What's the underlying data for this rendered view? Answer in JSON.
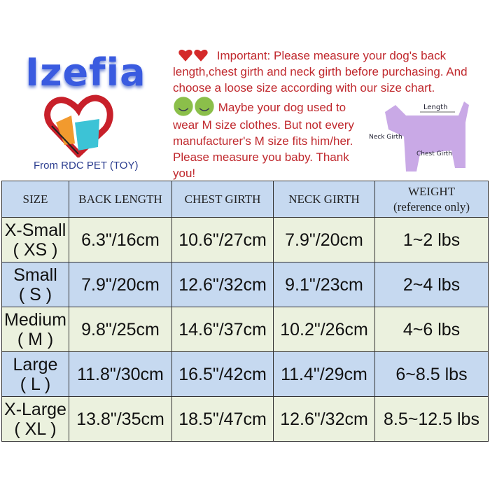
{
  "brand": {
    "name": "Izefia",
    "from": "From RDC PET (TOY)"
  },
  "notice": {
    "important": "Important: Please measure your dog's back length,chest girth and neck girth before purchasing. And choose a loose size according with our size chart.",
    "maybe": "Maybe your dog used to wear M size clothes. But not every manufacturer's M size fits him/her. Please measure you baby. Thank you!"
  },
  "diagram": {
    "length": "Length",
    "neck": "Neck Girth",
    "chest": "Chest Girth"
  },
  "colors": {
    "header": "#c6d9f0",
    "row_green": "#ebf1de",
    "row_blue": "#c6d9f0",
    "notice_text": "#c0282d",
    "brand": "#3a5be0"
  },
  "table": {
    "headers": [
      "SIZE",
      "BACK LENGTH",
      "CHEST GIRTH",
      "NECK GIRTH",
      "WEIGHT",
      "(reference only)"
    ],
    "rows": [
      {
        "size": "X-Small",
        "code": "( XS )",
        "back": "6.3\"/16cm",
        "chest": "10.6\"/27cm",
        "neck": "7.9\"/20cm",
        "weight": "1~2 lbs"
      },
      {
        "size": "Small",
        "code": "( S )",
        "back": "7.9\"/20cm",
        "chest": "12.6\"/32cm",
        "neck": "9.1\"/23cm",
        "weight": "2~4 lbs"
      },
      {
        "size": "Medium",
        "code": "( M )",
        "back": "9.8\"/25cm",
        "chest": "14.6\"/37cm",
        "neck": "10.2\"/26cm",
        "weight": "4~6 lbs"
      },
      {
        "size": "Large",
        "code": "( L )",
        "back": "11.8\"/30cm",
        "chest": "16.5\"/42cm",
        "neck": "11.4\"/29cm",
        "weight": "6~8.5 lbs"
      },
      {
        "size": "X-Large",
        "code": "( XL )",
        "back": "13.8\"/35cm",
        "chest": "18.5\"/47cm",
        "neck": "12.6\"/32cm",
        "weight": "8.5~12.5 lbs"
      }
    ]
  }
}
